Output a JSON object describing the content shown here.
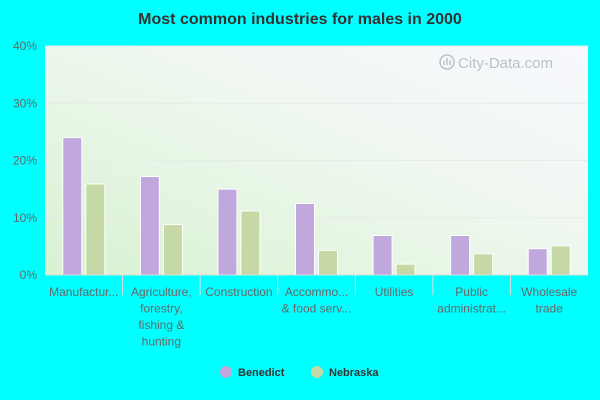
{
  "chart_data": {
    "type": "bar",
    "title": "Most common industries for males in 2000",
    "categories": [
      [
        "Manufactur..."
      ],
      [
        "Agriculture,",
        "forestry,",
        "fishing &",
        "hunting"
      ],
      [
        "Construction"
      ],
      [
        "Accommo...",
        "& food serv..."
      ],
      [
        "Utilities"
      ],
      [
        "Public",
        "administrat..."
      ],
      [
        "Wholesale",
        "trade"
      ]
    ],
    "series": [
      {
        "name": "Benedict",
        "color": "#c0a8dc",
        "values": [
          24.0,
          17.2,
          15.0,
          12.5,
          6.9,
          6.9,
          4.6
        ]
      },
      {
        "name": "Nebraska",
        "color": "#c6d8a6",
        "values": [
          15.9,
          8.8,
          11.2,
          4.3,
          1.9,
          3.7,
          5.1
        ]
      }
    ],
    "ylim": [
      0,
      40
    ],
    "yticks": [
      0,
      10,
      20,
      30,
      40
    ],
    "ytick_labels": [
      "0%",
      "10%",
      "20%",
      "30%",
      "40%"
    ],
    "xlabel": "",
    "ylabel": "",
    "legend_position": "bottom",
    "grid": true
  },
  "watermark": "City-Data.com"
}
